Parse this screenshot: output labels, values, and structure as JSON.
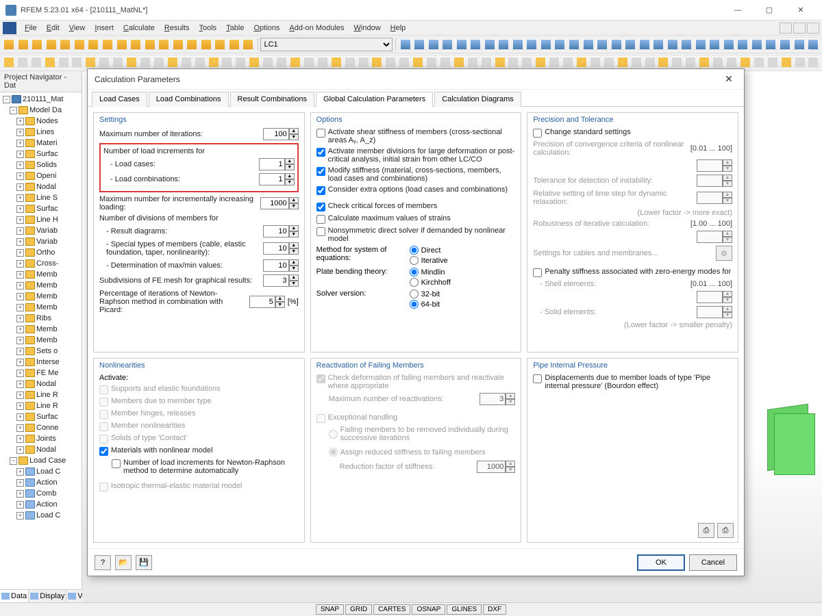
{
  "window": {
    "title": "RFEM 5.23.01 x64 - [210111_MatNL*]",
    "controls": {
      "min": "—",
      "max": "▢",
      "close": "✕"
    }
  },
  "menu": {
    "items": [
      "File",
      "Edit",
      "View",
      "Insert",
      "Calculate",
      "Results",
      "Tools",
      "Table",
      "Options",
      "Add-on Modules",
      "Window",
      "Help"
    ]
  },
  "toolbar": {
    "combo_value": "LC1"
  },
  "navigator": {
    "title": "Project Navigator - Dat",
    "root": "210111_Mat",
    "groups": [
      {
        "label": "Model Da",
        "children": [
          "Nodes",
          "Lines",
          "Materi",
          "Surfac",
          "Solids",
          "Openi",
          "Nodal",
          "Line S",
          "Surfac",
          "Line H",
          "Variab",
          "Variab",
          "Ortho",
          "Cross-",
          "Memb",
          "Memb",
          "Memb",
          "Memb",
          "Ribs",
          "Memb",
          "Memb",
          "Sets o",
          "Interse",
          "FE Me",
          "Nodal",
          "Line R",
          "Line R",
          "Surfac",
          "Conne",
          "Joints",
          "Nodal"
        ]
      },
      {
        "label": "Load Case",
        "children": [
          "Load C",
          "Action",
          "Comb",
          "Action",
          "Load C"
        ]
      }
    ],
    "tabs": [
      "Data",
      "Display",
      "Views"
    ]
  },
  "statusbar": [
    "SNAP",
    "GRID",
    "CARTES",
    "OSNAP",
    "GLINES",
    "DXF"
  ],
  "dialog": {
    "title": "Calculation Parameters",
    "tabs": [
      "Load Cases",
      "Load Combinations",
      "Result Combinations",
      "Global Calculation Parameters",
      "Calculation Diagrams"
    ],
    "active_tab": 3,
    "settings": {
      "title": "Settings",
      "max_iter_label": "Maximum number of iterations:",
      "max_iter": "100",
      "incr_title": "Number of load increments for",
      "load_cases_label": "- Load cases:",
      "load_cases": "1",
      "load_combos_label": "- Load combinations:",
      "load_combos": "1",
      "max_incr_label": "Maximum number for incrementally increasing loading:",
      "max_incr": "1000",
      "div_title": "Number of divisions of members for",
      "result_diag_label": "- Result diagrams:",
      "result_diag": "10",
      "special_label": "- Special types of members (cable, elastic foundation, taper, nonlinearity):",
      "special": "10",
      "maxmin_label": "- Determination of max/min values:",
      "maxmin": "10",
      "fe_label": "Subdivisions of FE mesh for graphical results:",
      "fe": "3",
      "picard_label": "Percentage of iterations of Newton-Raphson method in combination with Picard:",
      "picard": "5",
      "picard_unit": "[%]"
    },
    "options": {
      "title": "Options",
      "shear": "Activate shear stiffness of members (cross-sectional areas Aᵧ, A_z)",
      "divisions": "Activate member divisions for large deformation or post-critical analysis, initial strain from other LC/CO",
      "modify": "Modify stiffness (material, cross-sections, members, load cases and combinations)",
      "extra": "Consider extra options (load cases and combinations)",
      "critical": "Check critical forces of members",
      "maxstrain": "Calculate maximum values of strains",
      "nonsym": "Nonsymmetric direct solver if demanded by nonlinear model",
      "method_label": "Method for system of equations:",
      "method_direct": "Direct",
      "method_iter": "Iterative",
      "plate_label": "Plate bending theory:",
      "plate_mindlin": "Mindlin",
      "plate_kirch": "Kirchhoff",
      "solver_label": "Solver version:",
      "solver_32": "32-bit",
      "solver_64": "64-bit"
    },
    "precision": {
      "title": "Precision and Tolerance",
      "change": "Change standard settings",
      "conv_label": "Precision of convergence criteria of nonlinear calculation:",
      "conv_range": "[0.01 ... 100]",
      "tol_label": "Tolerance for detection of instability:",
      "time_label": "Relative setting of time step for dynamic relaxation:",
      "time_note": "(Lower factor -> more exact)",
      "robust_label": "Robustness of iterative calculation:",
      "robust_range": "[1.00 ... 100]",
      "cables": "Settings for cables and membranes...",
      "penalty": "Penalty stiffness associated with zero-energy modes for",
      "shell_label": "- Shell elements:",
      "shell_range": "[0.01 ... 100]",
      "solid_label": "- Solid elements:",
      "penalty_note": "(Lower factor -> smaller penalty)"
    },
    "nonlin": {
      "title": "Nonlinearities",
      "activate": "Activate:",
      "supports": "Supports and elastic foundations",
      "members_type": "Members due to member type",
      "hinges": "Member hinges, releases",
      "memb_nl": "Member nonlinearities",
      "solids": "Solids of type 'Contact'",
      "mat_nl": "Materials with nonlinear model",
      "nr_auto": "Number of load increments for Newton-Raphson method to determine automatically",
      "iso": "Isotropic thermal-elastic material model"
    },
    "reactivation": {
      "title": "Reactivation of Failing Members",
      "check": "Check deformation of failing members and reactivate where appropriate",
      "max_label": "Maximum number of reactivations:",
      "max": "3",
      "exc": "Exceptional handling",
      "remove": "Failing members to be removed individually during successive iterations",
      "assign": "Assign reduced stiffness to failing members",
      "reduction_label": "Reduction factor of stiffness:",
      "reduction": "1000"
    },
    "pipe": {
      "title": "Pipe Internal Pressure",
      "disp": "Displacements due to member loads of type 'Pipe internal pressure' (Bourdon effect)"
    },
    "buttons": {
      "ok": "OK",
      "cancel": "Cancel"
    }
  }
}
